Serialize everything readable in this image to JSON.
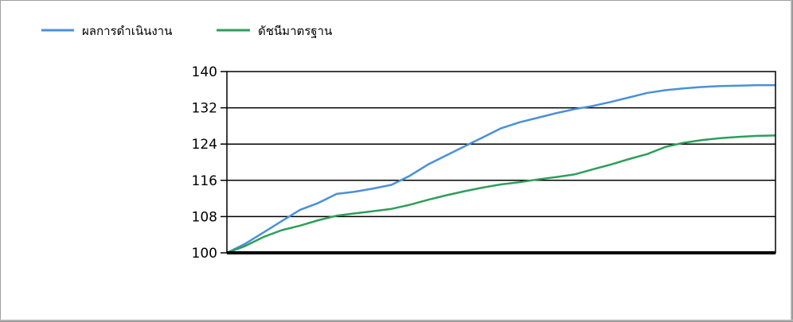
{
  "chart_data": {
    "type": "line",
    "title": "",
    "xlabel": "",
    "ylabel": "",
    "ylim": [
      100,
      140
    ],
    "yticks": [
      140,
      132,
      124,
      116,
      108,
      100
    ],
    "grid": true,
    "legend_position": "top-left",
    "x": [
      0,
      1,
      2,
      3,
      4,
      5,
      6,
      7,
      8,
      9,
      10,
      11,
      12,
      13,
      14,
      15,
      16,
      17,
      18,
      19,
      20,
      21,
      22,
      23,
      24,
      25,
      26,
      27,
      28,
      29,
      30
    ],
    "series": [
      {
        "name": "ผลการดำเนินงาน",
        "color": "#4a90d9",
        "values": [
          100,
          102,
          104.5,
          107,
          109.5,
          111,
          113,
          113.5,
          114.2,
          115,
          117,
          119.5,
          121.5,
          123.5,
          125.5,
          127.5,
          128.8,
          129.8,
          130.8,
          131.7,
          132.4,
          133.3,
          134.3,
          135.3,
          135.9,
          136.3,
          136.6,
          136.8,
          136.9,
          137.0,
          137.0
        ]
      },
      {
        "name": "ดัชนีมาตรฐาน",
        "color": "#2e9e5a",
        "values": [
          100,
          101.5,
          103.5,
          105,
          106,
          107.2,
          108.2,
          108.7,
          109.2,
          109.7,
          110.6,
          111.7,
          112.7,
          113.6,
          114.4,
          115.1,
          115.6,
          116.2,
          116.7,
          117.3,
          118.4,
          119.5,
          120.7,
          121.8,
          123.4,
          124.3,
          124.9,
          125.3,
          125.6,
          125.8,
          125.9
        ]
      }
    ]
  }
}
